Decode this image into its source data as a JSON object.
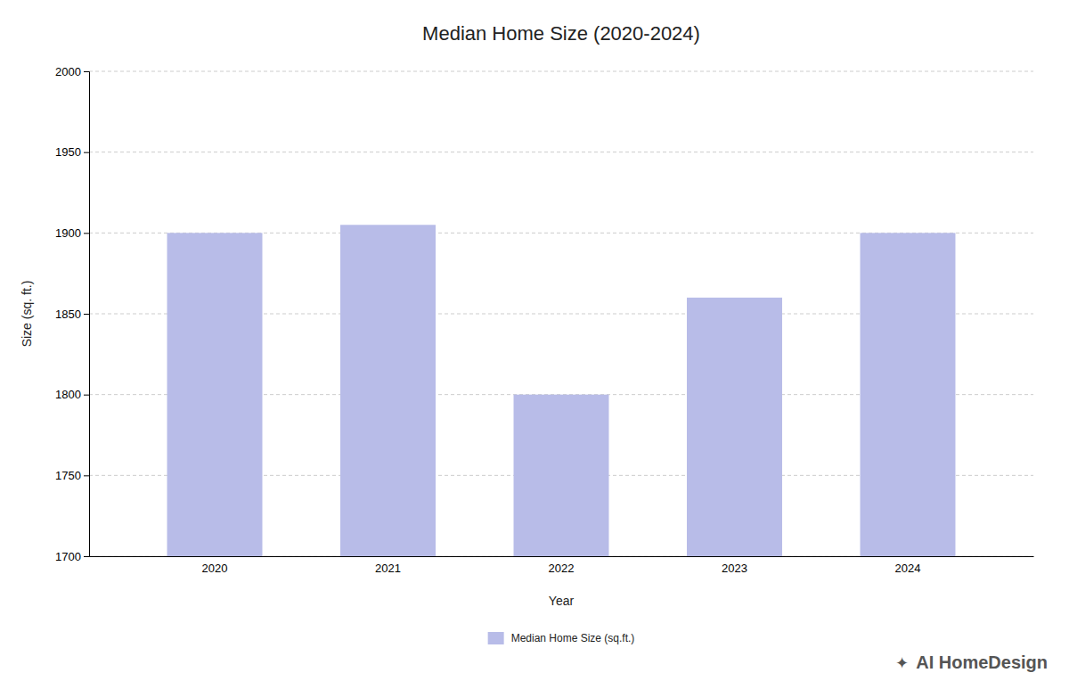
{
  "chart_data": {
    "type": "bar",
    "title": "Median Home Size (2020-2024)",
    "categories": [
      "2020",
      "2021",
      "2022",
      "2023",
      "2024"
    ],
    "series": [
      {
        "name": "Median Home Size (sq.ft.)",
        "color": "#b8bce8",
        "values": [
          1900,
          1905,
          1800,
          1860,
          1900
        ]
      }
    ],
    "xlabel": "Year",
    "ylabel": "Size (sq. ft.)",
    "ylim": [
      1700,
      2000
    ],
    "yticks": [
      1700,
      1750,
      1800,
      1850,
      1900,
      1950,
      2000
    ],
    "grid": true,
    "legend": "bottom",
    "annotations": [
      "✦",
      "AI HomeDesign"
    ]
  }
}
